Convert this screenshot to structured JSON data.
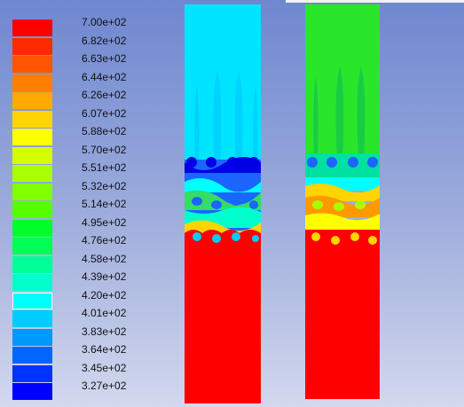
{
  "legend": {
    "labels": [
      "7.00e+02",
      "6.82e+02",
      "6.63e+02",
      "6.44e+02",
      "6.26e+02",
      "6.07e+02",
      "5.88e+02",
      "5.70e+02",
      "5.51e+02",
      "5.32e+02",
      "5.14e+02",
      "4.95e+02",
      "4.76e+02",
      "4.58e+02",
      "4.39e+02",
      "4.20e+02",
      "4.01e+02",
      "3.83e+02",
      "3.64e+02",
      "3.45e+02",
      "3.27e+02"
    ],
    "colors": [
      "#ff0000",
      "#ff2a00",
      "#ff5500",
      "#ff7f00",
      "#ffaa00",
      "#ffd400",
      "#ffff00",
      "#d4ff00",
      "#aaff00",
      "#7fff00",
      "#55ff00",
      "#00ff2a",
      "#00ff55",
      "#00ff99",
      "#00ffcc",
      "#00ffff",
      "#00ccff",
      "#0099ff",
      "#0066ff",
      "#0033ff",
      "#0000ff"
    ],
    "selected_index": 15
  },
  "contours": [
    {
      "name": "left-column",
      "top_color": "#00e5ff",
      "bottom_color": "#ff0000"
    },
    {
      "name": "right-column",
      "top_color": "#2ae62a",
      "bottom_color": "#ff0000"
    }
  ]
}
